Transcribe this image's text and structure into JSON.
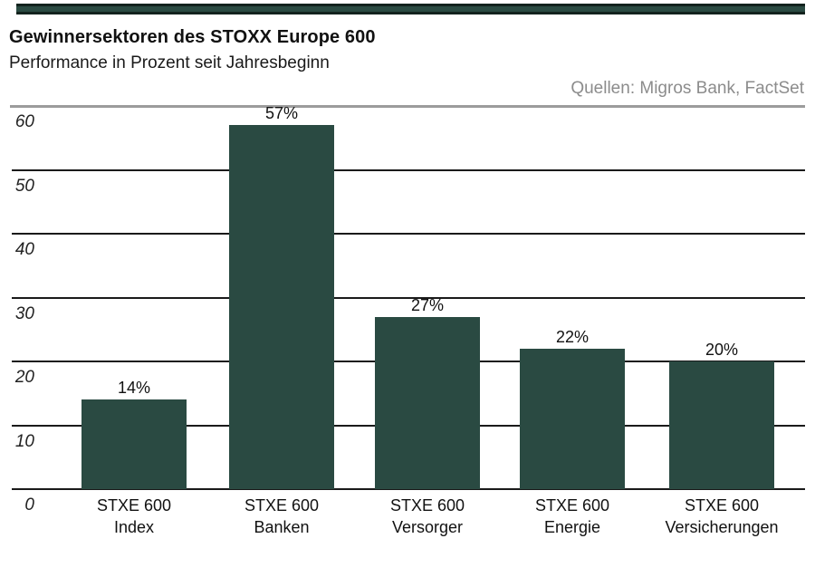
{
  "header": {
    "title": "Gewinnersektoren des STOXX Europe 600",
    "subtitle": "Performance in Prozent seit Jahresbeginn",
    "source": "Quellen: Migros Bank, FactSet"
  },
  "colors": {
    "bar": "#2a4a42",
    "ribbon": "#2a4a42",
    "ribbon_border": "#13231e",
    "gridline": "#1a1a1a",
    "top_divider": "#9c9c9c",
    "source_text": "#8c8c8c",
    "text": "#111111"
  },
  "chart_data": {
    "type": "bar",
    "title": "Gewinnersektoren des STOXX Europe 600",
    "subtitle": "Performance in Prozent seit Jahresbeginn",
    "source": "Quellen: Migros Bank, FactSet",
    "categories": [
      [
        "STXE 600",
        "Index"
      ],
      [
        "STXE 600",
        "Banken"
      ],
      [
        "STXE 600",
        "Versorger"
      ],
      [
        "STXE 600",
        "Energie"
      ],
      [
        "STXE 600",
        "Versicherungen"
      ]
    ],
    "values": [
      14,
      57,
      27,
      22,
      20
    ],
    "value_labels": [
      "14%",
      "57%",
      "27%",
      "22%",
      "20%"
    ],
    "xlabel": "",
    "ylabel": "",
    "ylim": [
      0,
      60
    ],
    "y_ticks": [
      0,
      10,
      20,
      30,
      40,
      50,
      60
    ],
    "grid": true,
    "legend": false,
    "bar_color": "#2a4a42"
  }
}
